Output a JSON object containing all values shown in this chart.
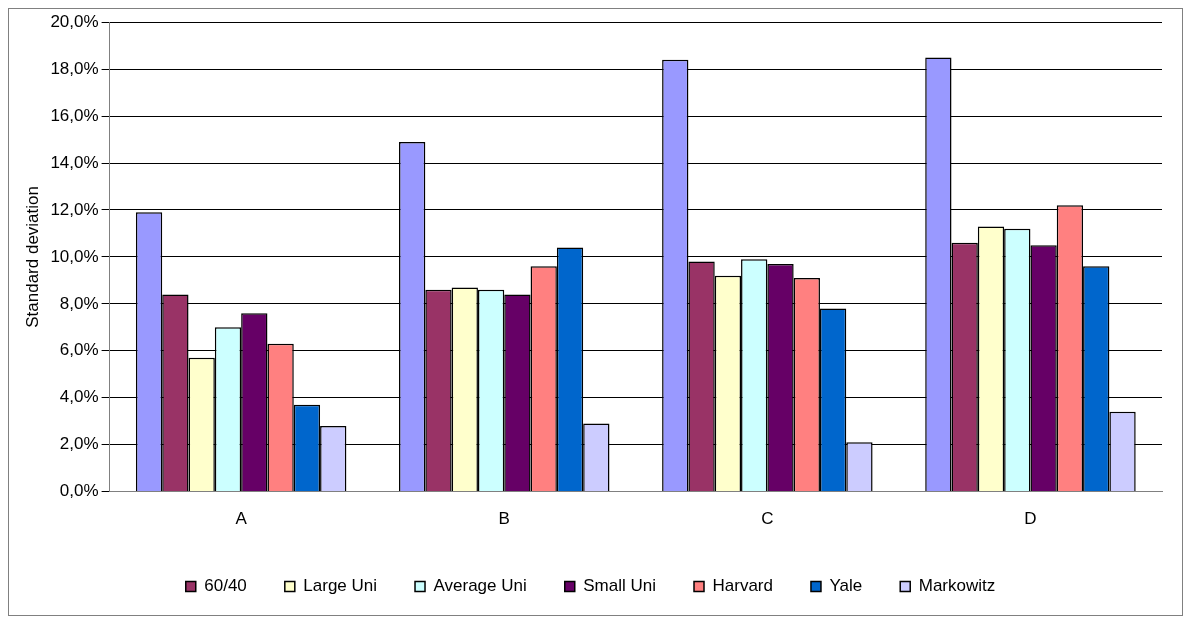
{
  "chart_data": {
    "type": "bar",
    "ylabel": "Standard deviation",
    "categories": [
      "A",
      "B",
      "C",
      "D"
    ],
    "series": [
      {
        "color": "#9999ff",
        "values": [
          11.9,
          14.9,
          18.4,
          18.5
        ]
      },
      {
        "name": "60/40",
        "color": "#993366",
        "values": [
          8.4,
          8.6,
          9.8,
          10.6
        ]
      },
      {
        "name": "Large Uni",
        "color": "#ffffcc",
        "values": [
          5.7,
          8.7,
          9.2,
          11.3
        ]
      },
      {
        "name": "Average Uni",
        "color": "#ccffff",
        "values": [
          7.0,
          8.6,
          9.9,
          11.2
        ]
      },
      {
        "name": "Small Uni",
        "color": "#660066",
        "values": [
          7.6,
          8.4,
          9.7,
          10.5
        ]
      },
      {
        "name": "Harvard",
        "color": "#ff8080",
        "values": [
          6.3,
          9.6,
          9.1,
          12.2
        ]
      },
      {
        "name": "Yale",
        "color": "#0066cc",
        "values": [
          3.7,
          10.4,
          7.8,
          9.6
        ]
      },
      {
        "name": "Markowitz",
        "color": "#ccccff",
        "values": [
          2.8,
          2.9,
          2.1,
          3.4
        ]
      }
    ],
    "ylim": [
      0,
      20
    ],
    "yticks": [
      {
        "value": 0,
        "label": "0,0%"
      },
      {
        "value": 2,
        "label": "2,0%"
      },
      {
        "value": 4,
        "label": "4,0%"
      },
      {
        "value": 6,
        "label": "6,0%"
      },
      {
        "value": 8,
        "label": "8,0%"
      },
      {
        "value": 10,
        "label": "10,0%"
      },
      {
        "value": 12,
        "label": "12,0%"
      },
      {
        "value": 14,
        "label": "14,0%"
      },
      {
        "value": 16,
        "label": "16,0%"
      },
      {
        "value": 18,
        "label": "18,0%"
      },
      {
        "value": 20,
        "label": "20,0%"
      }
    ],
    "grid": "y",
    "legend": "bottom"
  }
}
